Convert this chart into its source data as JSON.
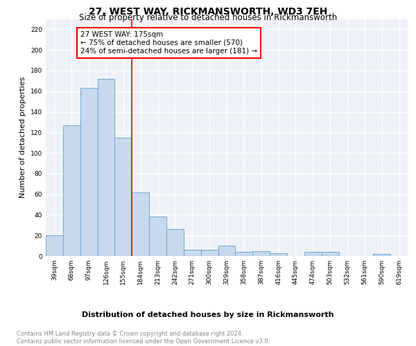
{
  "title": "27, WEST WAY, RICKMANSWORTH, WD3 7EH",
  "subtitle": "Size of property relative to detached houses in Rickmansworth",
  "xlabel": "Distribution of detached houses by size in Rickmansworth",
  "ylabel": "Number of detached properties",
  "categories": [
    "39sqm",
    "68sqm",
    "97sqm",
    "126sqm",
    "155sqm",
    "184sqm",
    "213sqm",
    "242sqm",
    "271sqm",
    "300sqm",
    "329sqm",
    "358sqm",
    "387sqm",
    "416sqm",
    "445sqm",
    "474sqm",
    "503sqm",
    "532sqm",
    "561sqm",
    "590sqm",
    "619sqm"
  ],
  "values": [
    20,
    127,
    163,
    172,
    115,
    62,
    38,
    26,
    6,
    6,
    10,
    4,
    5,
    3,
    0,
    4,
    4,
    0,
    0,
    2,
    0
  ],
  "bar_color": "#c9d9ed",
  "bar_edge_color": "#7bafd4",
  "red_line_x": 4.5,
  "annotation_text": "27 WEST WAY: 175sqm\n← 75% of detached houses are smaller (570)\n24% of semi-detached houses are larger (181) →",
  "annotation_box_color": "white",
  "annotation_box_edge_color": "red",
  "ylim": [
    0,
    230
  ],
  "yticks": [
    0,
    20,
    40,
    60,
    80,
    100,
    120,
    140,
    160,
    180,
    200,
    220
  ],
  "bg_color": "#eef2f8",
  "grid_color": "white",
  "footer_text": "Contains HM Land Registry data © Crown copyright and database right 2024.\nContains public sector information licensed under the Open Government Licence v3.0.",
  "title_fontsize": 10,
  "subtitle_fontsize": 8.5,
  "ylabel_fontsize": 8,
  "xlabel_fontsize": 8,
  "tick_fontsize": 6.5,
  "annotation_fontsize": 7.5,
  "footer_fontsize": 6
}
